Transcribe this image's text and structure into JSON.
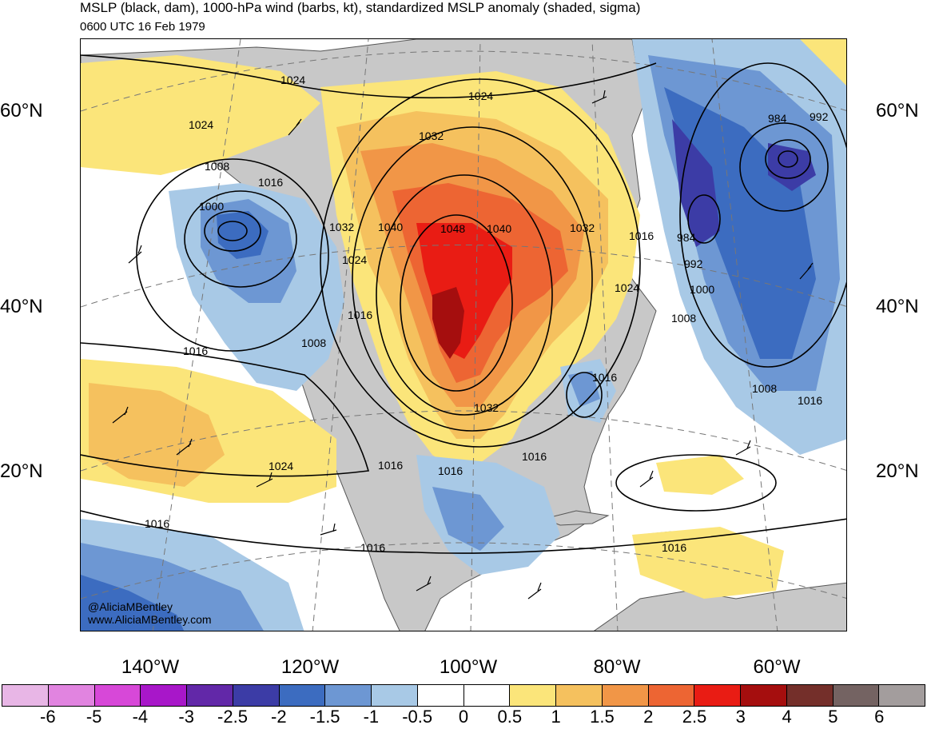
{
  "header": {
    "title": "MSLP (black, dam), 1000-hPa wind (barbs, kt), standardized MSLP anomaly (shaded, sigma)",
    "subtitle": "0600 UTC 16 Feb 1979"
  },
  "map": {
    "lat_labels": [
      "60°N",
      "40°N",
      "20°N"
    ],
    "lon_labels": [
      "140°W",
      "120°W",
      "100°W",
      "80°W",
      "60°W"
    ],
    "isobar_labels": [
      "1024",
      "1024",
      "1024",
      "1032",
      "1008",
      "1016",
      "1000",
      "1032",
      "1040",
      "1048",
      "1040",
      "1032",
      "1016",
      "984",
      "992",
      "984",
      "992",
      "1024",
      "1000",
      "1024",
      "1016",
      "1008",
      "1016",
      "1008",
      "1016",
      "1032",
      "1008",
      "1016",
      "1024",
      "1016",
      "1016",
      "1016",
      "1016",
      "1016"
    ],
    "credit_handle": "@AliciaMBentley",
    "credit_site": "www.AliciaMBentley.com",
    "colors": {
      "anomaly_neg_6": "#e8b6e6",
      "anomaly_neg_5": "#e184e0",
      "anomaly_neg_4": "#d748d8",
      "anomaly_neg_3": "#a817c9",
      "anomaly_neg_2_5": "#6228a8",
      "anomaly_neg_2": "#3c3ca6",
      "anomaly_neg_1_5": "#3c6cc0",
      "anomaly_neg_1": "#6d97d3",
      "anomaly_neg_0_5": "#a8c9e6",
      "anomaly_0": "#ffffff",
      "anomaly_pos_0_5": "#fbe57a",
      "anomaly_pos_1": "#f5c15e",
      "anomaly_pos_1_5": "#f19647",
      "anomaly_pos_2": "#ed6533",
      "anomaly_pos_2_5": "#e91c14",
      "anomaly_pos_3": "#a50e0e",
      "anomaly_pos_4": "#742f2a",
      "anomaly_pos_5": "#746362",
      "anomaly_pos_6": "#a39d9d",
      "land": "#c8c8c8"
    }
  },
  "colorbar": {
    "labels": [
      "-6",
      "-5",
      "-4",
      "-3",
      "-2.5",
      "-2",
      "-1.5",
      "-1",
      "-0.5",
      "0",
      "0.5",
      "1",
      "1.5",
      "2",
      "2.5",
      "3",
      "4",
      "5",
      "6"
    ],
    "colors": [
      "#e8b6e6",
      "#e184e0",
      "#d748d8",
      "#a817c9",
      "#6228a8",
      "#3c3ca6",
      "#3c6cc0",
      "#6d97d3",
      "#a8c9e6",
      "#ffffff",
      "#ffffff",
      "#fbe57a",
      "#f5c15e",
      "#f19647",
      "#ed6533",
      "#e91c14",
      "#a50e0e",
      "#742f2a",
      "#746362",
      "#a39d9d"
    ]
  }
}
